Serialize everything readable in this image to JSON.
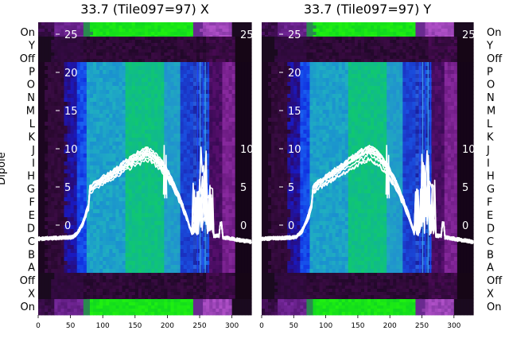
{
  "chart_data": [
    {
      "type": "heatmap",
      "title": "33.7 (Tile097=97) X",
      "ylabel": "Dipole",
      "dipole_labels": [
        "On",
        "Y",
        "Off",
        "P",
        "O",
        "N",
        "M",
        "L",
        "K",
        "J",
        "I",
        "H",
        "G",
        "F",
        "E",
        "D",
        "C",
        "B",
        "A",
        "Off",
        "X",
        "On"
      ],
      "xlim": [
        0,
        330
      ],
      "x_ticks": [
        "0",
        "50",
        "100",
        "150",
        "200",
        "250",
        "300"
      ],
      "overlay_ticks": [
        "25",
        "20",
        "15",
        "10",
        "5",
        "0"
      ],
      "spectrum_lines": 10
    },
    {
      "type": "heatmap",
      "title": "33.7 (Tile097=97) Y",
      "ylabel": "",
      "dipole_labels": [
        "On",
        "Y",
        "Off",
        "P",
        "O",
        "N",
        "M",
        "L",
        "K",
        "J",
        "I",
        "H",
        "G",
        "F",
        "E",
        "D",
        "C",
        "B",
        "A",
        "Off",
        "X",
        "On"
      ],
      "xlim": [
        0,
        330
      ],
      "x_ticks": [
        "0",
        "50",
        "100",
        "150",
        "200",
        "250",
        "300"
      ],
      "overlay_ticks": [
        "25",
        "20",
        "15",
        "10",
        "5",
        "0"
      ],
      "spectrum_lines": 10
    }
  ]
}
